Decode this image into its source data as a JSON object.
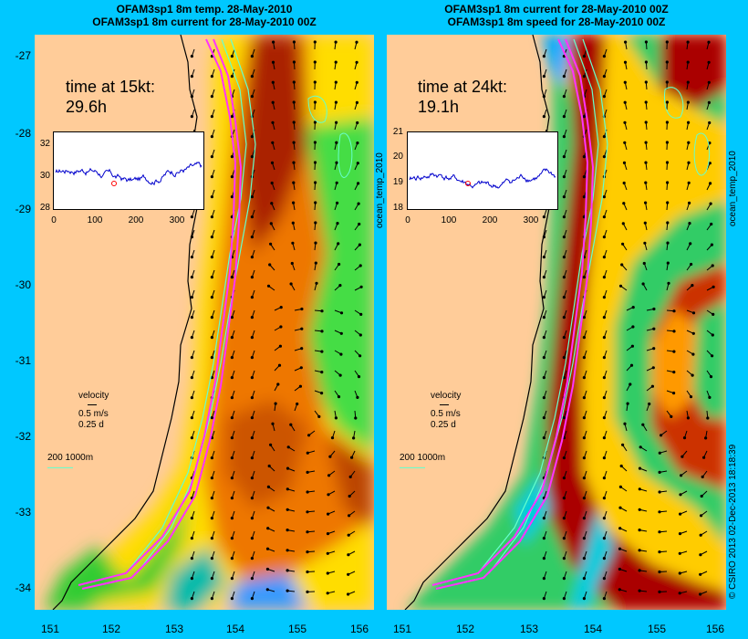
{
  "titles": {
    "left_line1": "OFAM3sp1 8m temp. 28-May-2010",
    "left_line2": "OFAM3sp1 8m current for 28-May-2010 00Z",
    "right_line1": "OFAM3sp1 8m current for 28-May-2010 00Z",
    "right_line2": "OFAM3sp1 8m speed for 28-May-2010 00Z"
  },
  "left_panel": {
    "time_label": "time at 15kt:",
    "time_value": "29.6h",
    "inset": {
      "y_ticks": [
        "32",
        "30",
        "28"
      ],
      "x_ticks": [
        "0",
        "100",
        "200",
        "300"
      ]
    },
    "legend": {
      "label": "velocity",
      "speed": "0.5 m/s",
      "duration": "0.25 d",
      "contours": "200  1000m"
    }
  },
  "right_panel": {
    "time_label": "time at 24kt:",
    "time_value": "19.1h",
    "inset": {
      "y_ticks": [
        "21",
        "20",
        "19",
        "18"
      ],
      "x_ticks": [
        "0",
        "100",
        "200",
        "300"
      ]
    },
    "legend": {
      "label": "velocity",
      "speed": "0.5 m/s",
      "duration": "0.25 d",
      "contours": "200  1000m"
    }
  },
  "side_labels": {
    "left_panel_right_edge": "ocean_temp_2010",
    "right_panel_right_edge": "ocean_temp_2010",
    "credit": "© CSIRO 2013  02-Dec-2013 18:18:39"
  },
  "axes": {
    "y_ticks": [
      "-27",
      "-28",
      "-29",
      "-30",
      "-31",
      "-32",
      "-33",
      "-34"
    ],
    "x_ticks": [
      "151",
      "152",
      "153",
      "154",
      "155",
      "156"
    ]
  },
  "colors": {
    "background": "#00c8ff",
    "land": "#ffcc99",
    "track": "#ff33ff",
    "contour": "#66ffcc"
  },
  "chart_data": [
    {
      "type": "heatmap",
      "title": "OFAM3sp1 8m temp. 28-May-2010 / OFAM3sp1 8m current for 28-May-2010 00Z",
      "xlim": [
        151,
        156
      ],
      "ylim": [
        -34.3,
        -26.7
      ],
      "x_ticks": [
        151,
        152,
        153,
        154,
        155,
        156
      ],
      "y_ticks": [
        -27,
        -28,
        -29,
        -30,
        -31,
        -32,
        -33,
        -34
      ],
      "field": "temperature",
      "inset": {
        "type": "line",
        "x_range": [
          0,
          360
        ],
        "y_range": [
          28,
          33
        ],
        "y_ticks": [
          28,
          30,
          32
        ]
      },
      "annotation": {
        "time_at_15kt_h": 29.6
      }
    },
    {
      "type": "heatmap",
      "title": "OFAM3sp1 8m current for 28-May-2010 00Z / OFAM3sp1 8m speed for 28-May-2010 00Z",
      "xlim": [
        151,
        156
      ],
      "ylim": [
        -34.3,
        -26.7
      ],
      "x_ticks": [
        151,
        152,
        153,
        154,
        155,
        156
      ],
      "y_ticks": [
        -27,
        -28,
        -29,
        -30,
        -31,
        -32,
        -33,
        -34
      ],
      "field": "speed",
      "inset": {
        "type": "line",
        "x_range": [
          0,
          360
        ],
        "y_range": [
          18,
          21
        ],
        "y_ticks": [
          18,
          19,
          20,
          21
        ]
      },
      "annotation": {
        "time_at_24kt_h": 19.1
      }
    }
  ]
}
